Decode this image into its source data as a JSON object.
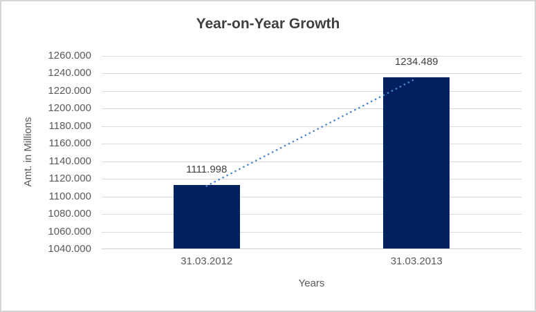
{
  "chart_data": {
    "type": "bar",
    "title": "Year-on-Year Growth",
    "xlabel": "Years",
    "ylabel": "Amt. in Millions",
    "categories": [
      "31.03.2012",
      "31.03.2013"
    ],
    "values": [
      1111.998,
      1234.489
    ],
    "data_labels": [
      "1111.998",
      "1234.489"
    ],
    "ylim": [
      1040,
      1260
    ],
    "ytick_step": 20,
    "ytick_labels": [
      "1260.000",
      "1240.000",
      "1220.000",
      "1200.000",
      "1180.000",
      "1160.000",
      "1140.000",
      "1120.000",
      "1100.000",
      "1080.000",
      "1060.000",
      "1040.000"
    ],
    "grid": true,
    "legend": "none",
    "trendline": {
      "type": "linear",
      "style": "dotted",
      "connects": [
        "31.03.2012",
        "31.03.2013"
      ]
    }
  },
  "colors": {
    "bar": "#002060",
    "trendline": "#4a86c8",
    "gridline": "#d9d9d9",
    "axis_line": "#cfcdcd",
    "title_text": "#3f3f3f",
    "axis_text": "#595959",
    "label_text": "#404040",
    "border": "#d5d5d5",
    "background": "#ffffff"
  }
}
